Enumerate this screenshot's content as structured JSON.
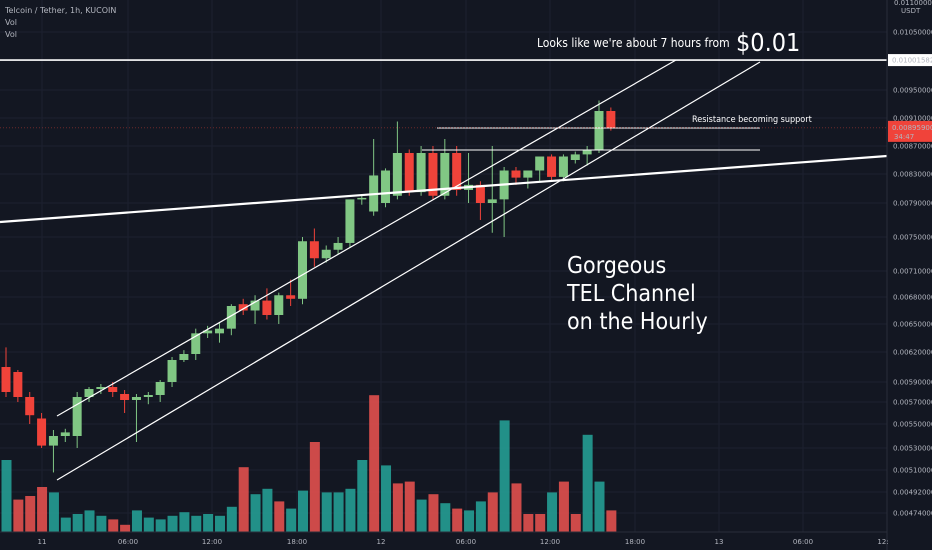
{
  "header": {
    "symbol": "Telcoin / Tether, 1h, KUCOIN",
    "vol1": "Vol",
    "vol2": "Vol"
  },
  "annotations": {
    "target_text": "Looks like we're about 7 hours from",
    "target_price": "$0.01",
    "resistance": "Resistance becoming support",
    "channel_line1": "Gorgeous",
    "channel_line2": "TEL Channel",
    "channel_line3": "on the Hourly"
  },
  "price_axis": {
    "currency": "USDT",
    "top_label": "0.01100000",
    "ticks": [
      "0.01050000",
      "0.00950000",
      "0.00910000",
      "0.00870000",
      "0.00830000",
      "0.00790000",
      "0.00750000",
      "0.00710000",
      "0.00680000",
      "0.00650000",
      "0.00620000",
      "0.00590000",
      "0.00570000",
      "0.00550000",
      "0.00530000",
      "0.00510000",
      "0.00492000",
      "0.00474000"
    ],
    "level_label": "0.01001582",
    "current_price": "0.00895900",
    "countdown": "34:47"
  },
  "time_axis": [
    "11",
    "06:00",
    "12:00",
    "18:00",
    "12",
    "06:00",
    "12:00",
    "18:00",
    "13",
    "06:00",
    "12:"
  ],
  "colors": {
    "bg": "#131722",
    "up": "#81c784",
    "down": "#f0433a",
    "vol_up": "#26a69a",
    "vol_down": "#ef5350",
    "line": "#ffffff"
  },
  "chart_data": {
    "type": "candlestick",
    "title": "Telcoin / Tether, 1h, KUCOIN",
    "y_unit": "USDT",
    "ylim": [
      0.00465,
      0.011
    ],
    "horizontal_level": 0.01001582,
    "candles": [
      {
        "o": 0.00605,
        "h": 0.00625,
        "l": 0.00575,
        "c": 0.0058
      },
      {
        "o": 0.006,
        "h": 0.00602,
        "l": 0.0057,
        "c": 0.00575
      },
      {
        "o": 0.00575,
        "h": 0.0058,
        "l": 0.0055,
        "c": 0.00558
      },
      {
        "o": 0.00555,
        "h": 0.0056,
        "l": 0.0053,
        "c": 0.00532
      },
      {
        "o": 0.00532,
        "h": 0.00545,
        "l": 0.00508,
        "c": 0.0054
      },
      {
        "o": 0.0054,
        "h": 0.00546,
        "l": 0.00535,
        "c": 0.00543
      },
      {
        "o": 0.0054,
        "h": 0.0058,
        "l": 0.0053,
        "c": 0.00575
      },
      {
        "o": 0.00575,
        "h": 0.00585,
        "l": 0.0057,
        "c": 0.00583
      },
      {
        "o": 0.00583,
        "h": 0.00588,
        "l": 0.00578,
        "c": 0.00585
      },
      {
        "o": 0.00585,
        "h": 0.0059,
        "l": 0.00575,
        "c": 0.0058
      },
      {
        "o": 0.00578,
        "h": 0.00582,
        "l": 0.0056,
        "c": 0.00572
      },
      {
        "o": 0.00572,
        "h": 0.00578,
        "l": 0.00535,
        "c": 0.00575
      },
      {
        "o": 0.00575,
        "h": 0.0058,
        "l": 0.00568,
        "c": 0.00577
      },
      {
        "o": 0.00577,
        "h": 0.00592,
        "l": 0.0057,
        "c": 0.0059
      },
      {
        "o": 0.0059,
        "h": 0.00615,
        "l": 0.00585,
        "c": 0.00612
      },
      {
        "o": 0.00612,
        "h": 0.00622,
        "l": 0.0061,
        "c": 0.00618
      },
      {
        "o": 0.00618,
        "h": 0.00645,
        "l": 0.00612,
        "c": 0.0064
      },
      {
        "o": 0.0064,
        "h": 0.00648,
        "l": 0.00635,
        "c": 0.00643
      },
      {
        "o": 0.0064,
        "h": 0.00652,
        "l": 0.0063,
        "c": 0.00645
      },
      {
        "o": 0.00645,
        "h": 0.00672,
        "l": 0.00638,
        "c": 0.0067
      },
      {
        "o": 0.00672,
        "h": 0.00678,
        "l": 0.0066,
        "c": 0.00665
      },
      {
        "o": 0.00665,
        "h": 0.00682,
        "l": 0.0065,
        "c": 0.00676
      },
      {
        "o": 0.00676,
        "h": 0.0069,
        "l": 0.00655,
        "c": 0.0066
      },
      {
        "o": 0.0066,
        "h": 0.00685,
        "l": 0.0065,
        "c": 0.00682
      },
      {
        "o": 0.00682,
        "h": 0.007,
        "l": 0.0067,
        "c": 0.00678
      },
      {
        "o": 0.00678,
        "h": 0.0075,
        "l": 0.00672,
        "c": 0.00745
      },
      {
        "o": 0.00745,
        "h": 0.0076,
        "l": 0.00715,
        "c": 0.00725
      },
      {
        "o": 0.00725,
        "h": 0.0074,
        "l": 0.0072,
        "c": 0.00735
      },
      {
        "o": 0.00735,
        "h": 0.0075,
        "l": 0.0073,
        "c": 0.00743
      },
      {
        "o": 0.00743,
        "h": 0.0079,
        "l": 0.00738,
        "c": 0.00795
      },
      {
        "o": 0.00795,
        "h": 0.008,
        "l": 0.00788,
        "c": 0.00797
      },
      {
        "o": 0.0078,
        "h": 0.0088,
        "l": 0.00775,
        "c": 0.00828
      },
      {
        "o": 0.0079,
        "h": 0.00838,
        "l": 0.00785,
        "c": 0.00835
      },
      {
        "o": 0.008,
        "h": 0.00905,
        "l": 0.00795,
        "c": 0.0086
      },
      {
        "o": 0.0086,
        "h": 0.00865,
        "l": 0.008,
        "c": 0.00805
      },
      {
        "o": 0.00805,
        "h": 0.0087,
        "l": 0.008,
        "c": 0.0086
      },
      {
        "o": 0.0086,
        "h": 0.0087,
        "l": 0.00795,
        "c": 0.008
      },
      {
        "o": 0.008,
        "h": 0.0088,
        "l": 0.00795,
        "c": 0.0086
      },
      {
        "o": 0.0086,
        "h": 0.0087,
        "l": 0.008,
        "c": 0.00808
      },
      {
        "o": 0.00808,
        "h": 0.0086,
        "l": 0.0079,
        "c": 0.00815
      },
      {
        "o": 0.00815,
        "h": 0.0082,
        "l": 0.0077,
        "c": 0.0079
      },
      {
        "o": 0.0079,
        "h": 0.0087,
        "l": 0.00755,
        "c": 0.00795
      },
      {
        "o": 0.00795,
        "h": 0.0084,
        "l": 0.0075,
        "c": 0.00835
      },
      {
        "o": 0.00835,
        "h": 0.0084,
        "l": 0.00815,
        "c": 0.00825
      },
      {
        "o": 0.00825,
        "h": 0.0083,
        "l": 0.0081,
        "c": 0.00835
      },
      {
        "o": 0.00835,
        "h": 0.00855,
        "l": 0.0082,
        "c": 0.00855
      },
      {
        "o": 0.00855,
        "h": 0.00858,
        "l": 0.0082,
        "c": 0.00826
      },
      {
        "o": 0.00826,
        "h": 0.00858,
        "l": 0.0082,
        "c": 0.00855
      },
      {
        "o": 0.0085,
        "h": 0.00862,
        "l": 0.00845,
        "c": 0.00858
      },
      {
        "o": 0.00858,
        "h": 0.0087,
        "l": 0.00842,
        "c": 0.00865
      },
      {
        "o": 0.00865,
        "h": 0.00935,
        "l": 0.0086,
        "c": 0.0092
      },
      {
        "o": 0.0092,
        "h": 0.00925,
        "l": 0.00892,
        "c": 0.00896
      }
    ],
    "volume": [
      {
        "v": 40,
        "dir": "up"
      },
      {
        "v": 18,
        "dir": "down"
      },
      {
        "v": 20,
        "dir": "down"
      },
      {
        "v": 25,
        "dir": "down"
      },
      {
        "v": 22,
        "dir": "up"
      },
      {
        "v": 8,
        "dir": "up"
      },
      {
        "v": 10,
        "dir": "up"
      },
      {
        "v": 12,
        "dir": "up"
      },
      {
        "v": 9,
        "dir": "up"
      },
      {
        "v": 7,
        "dir": "down"
      },
      {
        "v": 4,
        "dir": "down"
      },
      {
        "v": 12,
        "dir": "up"
      },
      {
        "v": 8,
        "dir": "up"
      },
      {
        "v": 7,
        "dir": "up"
      },
      {
        "v": 9,
        "dir": "up"
      },
      {
        "v": 11,
        "dir": "up"
      },
      {
        "v": 9,
        "dir": "up"
      },
      {
        "v": 10,
        "dir": "up"
      },
      {
        "v": 9,
        "dir": "up"
      },
      {
        "v": 14,
        "dir": "up"
      },
      {
        "v": 36,
        "dir": "down"
      },
      {
        "v": 21,
        "dir": "up"
      },
      {
        "v": 24,
        "dir": "up"
      },
      {
        "v": 17,
        "dir": "down"
      },
      {
        "v": 13,
        "dir": "up"
      },
      {
        "v": 23,
        "dir": "up"
      },
      {
        "v": 50,
        "dir": "down"
      },
      {
        "v": 22,
        "dir": "up"
      },
      {
        "v": 22,
        "dir": "up"
      },
      {
        "v": 24,
        "dir": "up"
      },
      {
        "v": 40,
        "dir": "up"
      },
      {
        "v": 76,
        "dir": "down"
      },
      {
        "v": 37,
        "dir": "up"
      },
      {
        "v": 27,
        "dir": "down"
      },
      {
        "v": 28,
        "dir": "down"
      },
      {
        "v": 18,
        "dir": "up"
      },
      {
        "v": 21,
        "dir": "down"
      },
      {
        "v": 16,
        "dir": "up"
      },
      {
        "v": 13,
        "dir": "down"
      },
      {
        "v": 12,
        "dir": "up"
      },
      {
        "v": 17,
        "dir": "up"
      },
      {
        "v": 22,
        "dir": "down"
      },
      {
        "v": 62,
        "dir": "up"
      },
      {
        "v": 27,
        "dir": "down"
      },
      {
        "v": 10,
        "dir": "down"
      },
      {
        "v": 10,
        "dir": "down"
      },
      {
        "v": 22,
        "dir": "up"
      },
      {
        "v": 28,
        "dir": "down"
      },
      {
        "v": 10,
        "dir": "down"
      },
      {
        "v": 54,
        "dir": "up"
      },
      {
        "v": 28,
        "dir": "up"
      },
      {
        "v": 12,
        "dir": "down"
      }
    ]
  }
}
